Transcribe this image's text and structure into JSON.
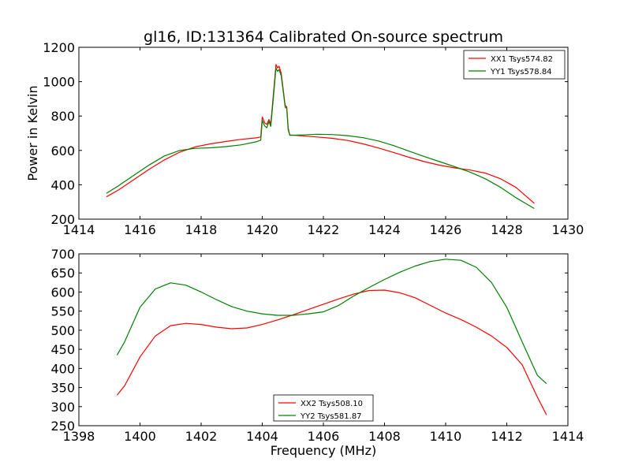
{
  "figure": {
    "title": "gl16, ID:131364 Calibrated On-source spectrum",
    "xlabel": "Frequency (MHz)",
    "ylabel": "Power in Kelvin"
  },
  "chart_data": [
    {
      "type": "line",
      "xlim": [
        1414,
        1430
      ],
      "ylim": [
        200,
        1200
      ],
      "xticks": [
        1414,
        1416,
        1418,
        1420,
        1422,
        1424,
        1426,
        1428,
        1430
      ],
      "yticks": [
        200,
        400,
        600,
        800,
        1000,
        1200
      ],
      "grid": false,
      "legend_position": "top-right",
      "series": [
        {
          "name": "XX1 Tsys574.82",
          "color": "#ff0000",
          "points": [
            [
              1414.9,
              330
            ],
            [
              1415.3,
              370
            ],
            [
              1415.8,
              430
            ],
            [
              1416.3,
              490
            ],
            [
              1416.8,
              545
            ],
            [
              1417.3,
              590
            ],
            [
              1417.8,
              620
            ],
            [
              1418.3,
              638
            ],
            [
              1418.8,
              652
            ],
            [
              1419.3,
              664
            ],
            [
              1419.8,
              673
            ],
            [
              1419.95,
              678
            ],
            [
              1420.0,
              795
            ],
            [
              1420.08,
              760
            ],
            [
              1420.15,
              752
            ],
            [
              1420.22,
              780
            ],
            [
              1420.28,
              755
            ],
            [
              1420.35,
              900
            ],
            [
              1420.45,
              1100
            ],
            [
              1420.5,
              1080
            ],
            [
              1420.55,
              1090
            ],
            [
              1420.62,
              1050
            ],
            [
              1420.68,
              960
            ],
            [
              1420.75,
              860
            ],
            [
              1420.8,
              855
            ],
            [
              1420.85,
              730
            ],
            [
              1420.9,
              690
            ],
            [
              1421.3,
              685
            ],
            [
              1421.8,
              678
            ],
            [
              1422.3,
              670
            ],
            [
              1422.8,
              658
            ],
            [
              1423.3,
              638
            ],
            [
              1423.8,
              614
            ],
            [
              1424.3,
              588
            ],
            [
              1424.8,
              560
            ],
            [
              1425.3,
              535
            ],
            [
              1425.8,
              514
            ],
            [
              1426.3,
              498
            ],
            [
              1426.8,
              486
            ],
            [
              1427.3,
              468
            ],
            [
              1427.8,
              435
            ],
            [
              1428.3,
              385
            ],
            [
              1428.9,
              292
            ]
          ]
        },
        {
          "name": "YY1 Tsys578.84",
          "color": "#008000",
          "points": [
            [
              1414.9,
              350
            ],
            [
              1415.3,
              395
            ],
            [
              1415.8,
              455
            ],
            [
              1416.3,
              515
            ],
            [
              1416.8,
              568
            ],
            [
              1417.3,
              600
            ],
            [
              1417.8,
              612
            ],
            [
              1418.3,
              615
            ],
            [
              1418.8,
              622
            ],
            [
              1419.3,
              632
            ],
            [
              1419.8,
              650
            ],
            [
              1419.95,
              660
            ],
            [
              1420.0,
              775
            ],
            [
              1420.08,
              742
            ],
            [
              1420.15,
              732
            ],
            [
              1420.22,
              768
            ],
            [
              1420.28,
              740
            ],
            [
              1420.35,
              880
            ],
            [
              1420.45,
              1080
            ],
            [
              1420.5,
              1060
            ],
            [
              1420.55,
              1070
            ],
            [
              1420.62,
              1035
            ],
            [
              1420.68,
              950
            ],
            [
              1420.75,
              850
            ],
            [
              1420.8,
              845
            ],
            [
              1420.85,
              720
            ],
            [
              1420.9,
              688
            ],
            [
              1421.3,
              690
            ],
            [
              1421.8,
              694
            ],
            [
              1422.3,
              692
            ],
            [
              1422.8,
              686
            ],
            [
              1423.3,
              674
            ],
            [
              1423.8,
              655
            ],
            [
              1424.3,
              628
            ],
            [
              1424.8,
              596
            ],
            [
              1425.3,
              564
            ],
            [
              1425.8,
              535
            ],
            [
              1426.3,
              505
            ],
            [
              1426.8,
              474
            ],
            [
              1427.3,
              435
            ],
            [
              1427.8,
              385
            ],
            [
              1428.3,
              325
            ],
            [
              1428.9,
              262
            ]
          ]
        }
      ]
    },
    {
      "type": "line",
      "xlim": [
        1398,
        1414
      ],
      "ylim": [
        250,
        700
      ],
      "xticks": [
        1398,
        1400,
        1402,
        1404,
        1406,
        1408,
        1410,
        1412,
        1414
      ],
      "yticks": [
        250,
        300,
        350,
        400,
        450,
        500,
        550,
        600,
        650,
        700
      ],
      "grid": false,
      "legend_position": "bottom-center",
      "series": [
        {
          "name": "XX2 Tsys508.10",
          "color": "#ff0000",
          "points": [
            [
              1399.25,
              330
            ],
            [
              1399.5,
              355
            ],
            [
              1400.0,
              430
            ],
            [
              1400.5,
              485
            ],
            [
              1401.0,
              512
            ],
            [
              1401.5,
              518
            ],
            [
              1402.0,
              515
            ],
            [
              1402.5,
              508
            ],
            [
              1403.0,
              504
            ],
            [
              1403.5,
              506
            ],
            [
              1404.0,
              515
            ],
            [
              1404.5,
              527
            ],
            [
              1405.0,
              540
            ],
            [
              1405.5,
              554
            ],
            [
              1406.0,
              568
            ],
            [
              1406.5,
              582
            ],
            [
              1407.0,
              595
            ],
            [
              1407.5,
              604
            ],
            [
              1408.0,
              605
            ],
            [
              1408.5,
              598
            ],
            [
              1409.0,
              585
            ],
            [
              1409.5,
              565
            ],
            [
              1410.0,
              545
            ],
            [
              1410.5,
              528
            ],
            [
              1411.0,
              508
            ],
            [
              1411.5,
              485
            ],
            [
              1412.0,
              455
            ],
            [
              1412.5,
              410
            ],
            [
              1413.0,
              325
            ],
            [
              1413.3,
              278
            ]
          ]
        },
        {
          "name": "YY2 Tsys581.87",
          "color": "#008000",
          "points": [
            [
              1399.25,
              435
            ],
            [
              1399.5,
              470
            ],
            [
              1400.0,
              560
            ],
            [
              1400.5,
              608
            ],
            [
              1401.0,
              624
            ],
            [
              1401.5,
              618
            ],
            [
              1402.0,
              600
            ],
            [
              1402.5,
              580
            ],
            [
              1403.0,
              562
            ],
            [
              1403.5,
              550
            ],
            [
              1404.0,
              543
            ],
            [
              1404.5,
              539
            ],
            [
              1405.0,
              539
            ],
            [
              1405.5,
              543
            ],
            [
              1406.0,
              548
            ],
            [
              1406.5,
              565
            ],
            [
              1407.0,
              590
            ],
            [
              1407.5,
              612
            ],
            [
              1408.0,
              633
            ],
            [
              1408.5,
              652
            ],
            [
              1409.0,
              668
            ],
            [
              1409.5,
              680
            ],
            [
              1410.0,
              686
            ],
            [
              1410.5,
              683
            ],
            [
              1411.0,
              665
            ],
            [
              1411.5,
              625
            ],
            [
              1412.0,
              560
            ],
            [
              1412.5,
              470
            ],
            [
              1413.0,
              382
            ],
            [
              1413.3,
              360
            ]
          ]
        }
      ]
    }
  ]
}
